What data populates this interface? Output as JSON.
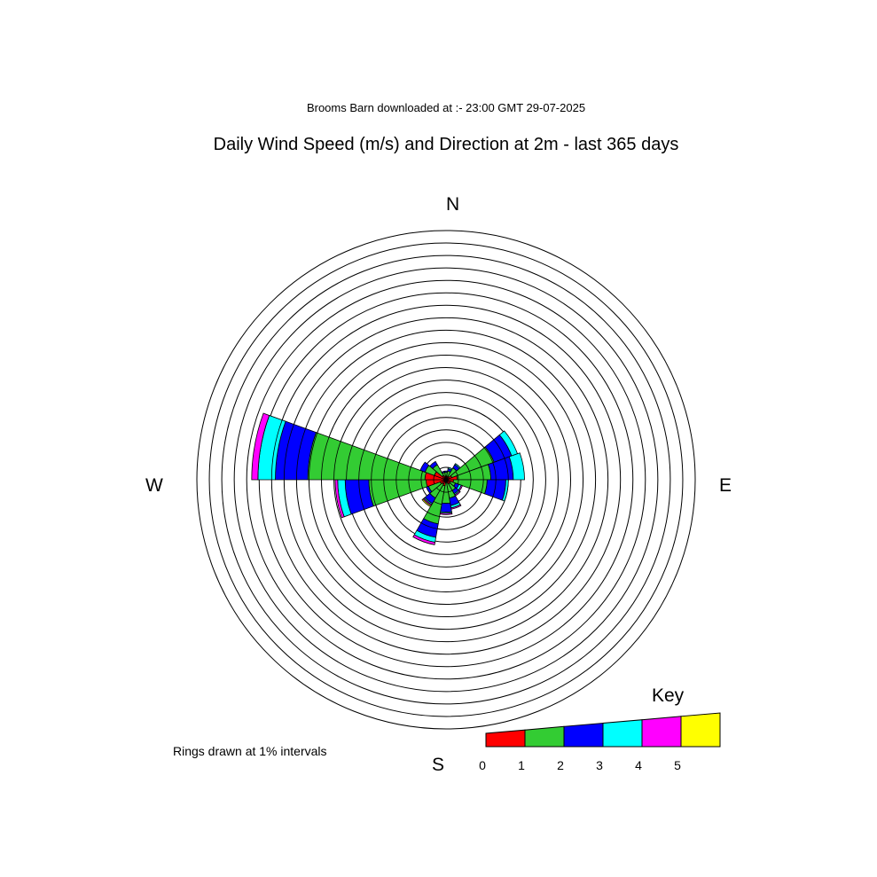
{
  "subtitle": "Brooms Barn downloaded at :- 23:00 GMT 29-07-2025",
  "title": "Daily Wind Speed (m/s) and Direction at 2m - last 365 days",
  "compass": {
    "n": "N",
    "e": "E",
    "s": "S",
    "w": "W"
  },
  "rings_note": "Rings drawn at 1% intervals",
  "chart_data": {
    "type": "wind-rose",
    "title": "Daily Wind Speed (m/s) and Direction at 2m - last 365 days",
    "subtitle": "Brooms Barn downloaded at :- 23:00 GMT 29-07-2025",
    "ring_interval_percent": 1,
    "ring_count": 20,
    "sector_width_deg": 20,
    "speed_bins": [
      {
        "range": "0-1",
        "color": "#ff0000"
      },
      {
        "range": "1-2",
        "color": "#33cc33"
      },
      {
        "range": "2-3",
        "color": "#0000ff"
      },
      {
        "range": "3-4",
        "color": "#00ffff"
      },
      {
        "range": "4-5",
        "color": "#ff00ff"
      },
      {
        "range": "5+",
        "color": "#ffff00"
      }
    ],
    "key": {
      "title": "Key",
      "labels": [
        "0",
        "1",
        "2",
        "3",
        "4",
        "5"
      ]
    },
    "sectors": [
      {
        "direction_deg": 0,
        "percent_by_bin": [
          0.3,
          0.3,
          0.1,
          0,
          0,
          0
        ]
      },
      {
        "direction_deg": 20,
        "percent_by_bin": [
          0.3,
          0.4,
          0.2,
          0.1,
          0,
          0
        ]
      },
      {
        "direction_deg": 40,
        "percent_by_bin": [
          0.3,
          0.8,
          0.3,
          0.1,
          0,
          0
        ]
      },
      {
        "direction_deg": 60,
        "percent_by_bin": [
          0.5,
          3.6,
          1.5,
          0.5,
          0,
          0
        ]
      },
      {
        "direction_deg": 80,
        "percent_by_bin": [
          0.9,
          2.7,
          1.8,
          0.9,
          0,
          0
        ]
      },
      {
        "direction_deg": 100,
        "percent_by_bin": [
          0.6,
          2.7,
          1.5,
          0.2,
          0,
          0
        ]
      },
      {
        "direction_deg": 120,
        "percent_by_bin": [
          0.4,
          0.4,
          0.3,
          0.2,
          0.1,
          0
        ]
      },
      {
        "direction_deg": 140,
        "percent_by_bin": [
          0.4,
          0.6,
          0.3,
          0.1,
          0.1,
          0
        ]
      },
      {
        "direction_deg": 160,
        "percent_by_bin": [
          0.3,
          1.2,
          0.6,
          0.2,
          0.1,
          0
        ]
      },
      {
        "direction_deg": 180,
        "percent_by_bin": [
          0.2,
          1.7,
          0.7,
          0.1,
          0.1,
          0
        ]
      },
      {
        "direction_deg": 200,
        "percent_by_bin": [
          0.5,
          3.1,
          1.1,
          0.4,
          0.2,
          0
        ]
      },
      {
        "direction_deg": 220,
        "percent_by_bin": [
          0.4,
          1.3,
          0.5,
          0.1,
          0.1,
          0.1
        ]
      },
      {
        "direction_deg": 240,
        "percent_by_bin": [
          0.5,
          1.0,
          0.2,
          0,
          0,
          0
        ]
      },
      {
        "direction_deg": 260,
        "percent_by_bin": [
          1.6,
          4.6,
          1.9,
          0.6,
          0.2,
          0
        ]
      },
      {
        "direction_deg": 280,
        "percent_by_bin": [
          1.7,
          9.4,
          2.6,
          1.4,
          0.5,
          0
        ]
      },
      {
        "direction_deg": 300,
        "percent_by_bin": [
          1.0,
          0.8,
          0.4,
          0,
          0,
          0
        ]
      },
      {
        "direction_deg": 320,
        "percent_by_bin": [
          0.4,
          1.0,
          0.3,
          0,
          0,
          0
        ]
      },
      {
        "direction_deg": 340,
        "percent_by_bin": [
          0.3,
          0.3,
          0.1,
          0,
          0,
          0
        ]
      }
    ]
  }
}
